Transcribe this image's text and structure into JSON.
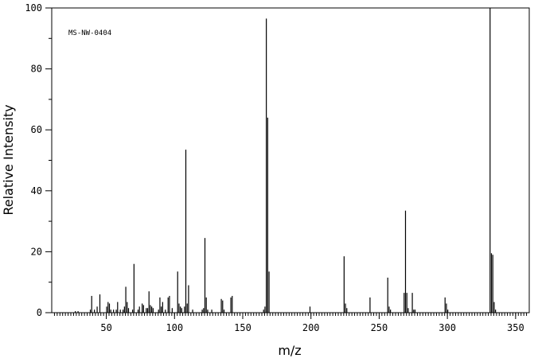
{
  "chart_data": {
    "type": "bar",
    "annotation": "MS-NW-0404",
    "xlabel": "m/z",
    "ylabel": "Relative Intensity",
    "xlim": [
      10,
      360
    ],
    "ylim": [
      0,
      100
    ],
    "x_ticks": [
      50,
      100,
      150,
      200,
      250,
      300,
      350
    ],
    "y_ticks": [
      0,
      20,
      40,
      60,
      80,
      100
    ],
    "x": [
      27,
      29,
      38,
      39,
      41,
      43,
      45,
      50,
      51,
      52,
      53,
      55,
      57,
      58,
      60,
      62,
      63,
      64,
      65,
      66,
      69,
      70,
      73,
      74,
      76,
      77,
      79,
      80,
      81,
      82,
      83,
      84,
      88,
      89,
      90,
      91,
      93,
      95,
      96,
      98,
      102,
      103,
      104,
      105,
      107,
      108,
      109,
      110,
      113,
      120,
      121,
      122,
      123,
      124,
      127,
      134,
      135,
      136,
      141,
      142,
      165,
      166,
      167,
      168,
      169,
      199,
      224,
      225,
      226,
      243,
      256,
      257,
      258,
      268,
      269,
      270,
      271,
      274,
      275,
      276,
      298,
      299,
      300,
      331,
      332,
      333,
      334,
      335
    ],
    "y": [
      0.5,
      0.5,
      1,
      5.5,
      1,
      2,
      6,
      2,
      3.5,
      3,
      1,
      1,
      1,
      3.5,
      1,
      1,
      2,
      8.5,
      3.5,
      1.5,
      1,
      16,
      1,
      2,
      3,
      2.5,
      1.5,
      1.5,
      7,
      2.5,
      2,
      1.5,
      1,
      5,
      2,
      3.5,
      1,
      5,
      5.5,
      1.5,
      13.5,
      3,
      2,
      1.5,
      2,
      53.5,
      3,
      9,
      1,
      1,
      1.5,
      24.5,
      5,
      1,
      1,
      4.5,
      4,
      1,
      5,
      5.5,
      1,
      2,
      96.5,
      64,
      13.5,
      2,
      18.5,
      3,
      1.5,
      5,
      11.5,
      2,
      1,
      6.5,
      33.5,
      6.5,
      1.5,
      6.5,
      1,
      1,
      5,
      3,
      1,
      100,
      19.5,
      19,
      3.5,
      1
    ]
  }
}
